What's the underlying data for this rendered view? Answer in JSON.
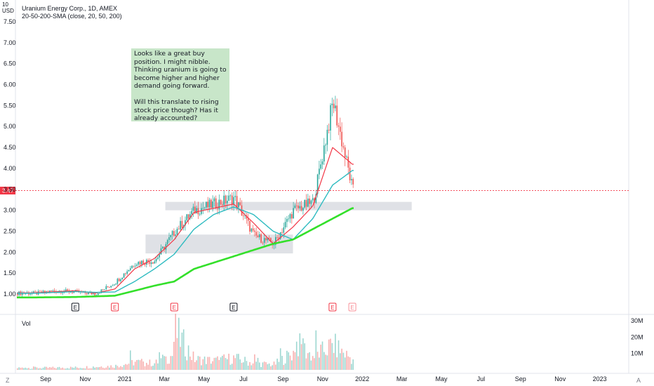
{
  "header": {
    "currency_top": "10",
    "currency_bottom": "USD",
    "title": "Uranium Energy Corp., 1D, AMEX",
    "study": "20-50-200-SMA (close, 20, 50, 200)"
  },
  "note": {
    "para1": "Looks like a great buy position. I might nibble. Thinking uranium is going to become higher and higher demand going forward.",
    "para2": "Will this translate to rising stock price though? Has it already accounted?",
    "color": "#c8e6c9"
  },
  "volume_pane": {
    "label": "Vol"
  },
  "bottom_bar": {
    "left": "Z",
    "right": "A"
  },
  "price_tag": "3.47",
  "colors": {
    "up": "#26a69a",
    "down": "#ef5350",
    "sma20": "#f23645",
    "sma50": "#2dbbc0",
    "sma200": "#33e02a",
    "zone": "#d1d4dc"
  },
  "chart_data": {
    "type": "candlestick",
    "title": "Uranium Energy Corp., 1D, AMEX",
    "xlabel": "",
    "ylabel": "",
    "ylim": [
      0.85,
      7.6
    ],
    "volume_ylim": [
      0,
      34
    ],
    "x_ticks": [
      "Sep",
      "Nov",
      "2021",
      "Mar",
      "May",
      "Jul",
      "Sep",
      "Nov",
      "2022",
      "Mar",
      "May",
      "Jul",
      "Sep",
      "Nov",
      "2023"
    ],
    "y_ticks": [
      "7.50",
      "7.00",
      "6.50",
      "6.00",
      "5.50",
      "5.00",
      "4.50",
      "4.00",
      "3.50",
      "3.00",
      "2.50",
      "2.00",
      "1.50",
      "1.00"
    ],
    "volume_ticks": [
      "30M",
      "20M",
      "10M"
    ],
    "last_price": 3.47,
    "price_points": [
      [
        "Aug 2020",
        1.02
      ],
      [
        "Sep 2020",
        1.08
      ],
      [
        "Oct 2020",
        1.05
      ],
      [
        "Nov 2020",
        1.0
      ],
      [
        "Dec 2020",
        1.28
      ],
      [
        "Jan 2021",
        1.75
      ],
      [
        "Feb 2021",
        1.8
      ],
      [
        "Mar 2021",
        2.5
      ],
      [
        "Apr 2021",
        3.0
      ],
      [
        "May 2021",
        3.15
      ],
      [
        "Jun 2021",
        3.3
      ],
      [
        "Jul 2021",
        2.4
      ],
      [
        "Aug 2021",
        2.2
      ],
      [
        "Sep 2021",
        3.0
      ],
      [
        "Oct 2021",
        3.2
      ],
      [
        "Nov 2021",
        5.6
      ],
      [
        "Dec 2021",
        3.47
      ]
    ],
    "series": [
      {
        "name": "SMA 20",
        "values": [
          [
            "Aug 2020",
            1.03
          ],
          [
            "Oct 2020",
            1.08
          ],
          [
            "Nov 2020",
            1.02
          ],
          [
            "Dec 2020",
            1.12
          ],
          [
            "Jan 2021",
            1.6
          ],
          [
            "Feb 2021",
            1.85
          ],
          [
            "Mar 2021",
            2.3
          ],
          [
            "Apr 2021",
            2.95
          ],
          [
            "May 2021",
            3.05
          ],
          [
            "Jun 2021",
            3.15
          ],
          [
            "Jul 2021",
            2.7
          ],
          [
            "Aug 2021",
            2.2
          ],
          [
            "Sep 2021",
            2.6
          ],
          [
            "Oct 2021",
            3.1
          ],
          [
            "Nov 2021",
            4.5
          ],
          [
            "Dec 2021",
            4.1
          ]
        ]
      },
      {
        "name": "SMA 50",
        "values": [
          [
            "Aug 2020",
            1.02
          ],
          [
            "Oct 2020",
            1.06
          ],
          [
            "Nov 2020",
            1.04
          ],
          [
            "Dec 2020",
            1.05
          ],
          [
            "Jan 2021",
            1.3
          ],
          [
            "Feb 2021",
            1.6
          ],
          [
            "Mar 2021",
            1.95
          ],
          [
            "Apr 2021",
            2.55
          ],
          [
            "May 2021",
            2.9
          ],
          [
            "Jun 2021",
            3.08
          ],
          [
            "Jul 2021",
            2.9
          ],
          [
            "Aug 2021",
            2.5
          ],
          [
            "Sep 2021",
            2.3
          ],
          [
            "Oct 2021",
            2.8
          ],
          [
            "Nov 2021",
            3.6
          ],
          [
            "Dec 2021",
            3.95
          ]
        ]
      },
      {
        "name": "SMA 200",
        "values": [
          [
            "Aug 2020",
            0.92
          ],
          [
            "Oct 2020",
            0.93
          ],
          [
            "Dec 2020",
            0.96
          ],
          [
            "Jan 2021",
            1.08
          ],
          [
            "Feb 2021",
            1.2
          ],
          [
            "Mar 2021",
            1.3
          ],
          [
            "Apr 2021",
            1.6
          ],
          [
            "May 2021",
            1.75
          ],
          [
            "Jun 2021",
            1.9
          ],
          [
            "Jul 2021",
            2.05
          ],
          [
            "Aug 2021",
            2.2
          ],
          [
            "Sep 2021",
            2.3
          ],
          [
            "Oct 2021",
            2.55
          ],
          [
            "Nov 2021",
            2.8
          ],
          [
            "Dec 2021",
            3.05
          ]
        ]
      }
    ],
    "zones": [
      {
        "from": "Feb 2021",
        "to": "Sep 2021",
        "low": 1.97,
        "high": 2.42
      },
      {
        "from": "Mar 2021",
        "to": "Mar 2022",
        "low": 3.0,
        "high": 3.2
      }
    ],
    "earnings_markers": [
      "Oct 2020",
      "Dec 2020",
      "Mar 2021",
      "Jun 2021",
      "Nov 2021",
      "Dec 2021"
    ],
    "volume_points": [
      [
        "Aug 2020",
        1.5
      ],
      [
        "Oct 2020",
        1.8
      ],
      [
        "Dec 2020",
        3
      ],
      [
        "Jan 2021",
        6
      ],
      [
        "Feb 2021",
        5
      ],
      [
        "Mar 2021",
        12
      ],
      [
        "Mar 2021",
        30
      ],
      [
        "Apr 2021",
        8
      ],
      [
        "May 2021",
        7
      ],
      [
        "Jun 2021",
        9
      ],
      [
        "Jul 2021",
        5
      ],
      [
        "Aug 2021",
        4
      ],
      [
        "Sep 2021",
        13
      ],
      [
        "Sep 2021",
        22
      ],
      [
        "Oct 2021",
        10
      ],
      [
        "Nov 2021",
        19
      ],
      [
        "Dec 2021",
        8
      ]
    ]
  }
}
